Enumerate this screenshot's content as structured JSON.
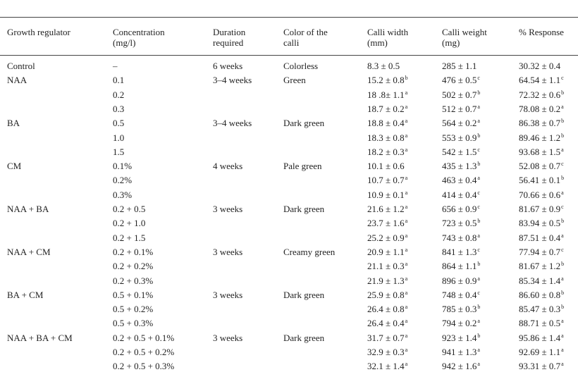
{
  "headers": [
    {
      "line1": "Growth regulator",
      "line2": ""
    },
    {
      "line1": "Concentration",
      "line2": "(mg/l)"
    },
    {
      "line1": "Duration",
      "line2": "required"
    },
    {
      "line1": "Color of the",
      "line2": "calli"
    },
    {
      "line1": "Calli width",
      "line2": "(mm)"
    },
    {
      "line1": "Calli weight",
      "line2": "(mg)"
    },
    {
      "line1": "% Response",
      "line2": ""
    }
  ],
  "rows": [
    {
      "regulator": "Control",
      "conc": "–",
      "duration": "6 weeks",
      "color": "Colorless",
      "width": {
        "v": "8.3 ± 0.5",
        "s": ""
      },
      "weight": {
        "v": "285 ± 1.1",
        "s": ""
      },
      "response": {
        "v": "30.32 ± 0.4",
        "s": ""
      }
    },
    {
      "regulator": "NAA",
      "conc": "0.1",
      "duration": "3–4 weeks",
      "color": "Green",
      "width": {
        "v": "15.2 ± 0.8",
        "s": "b"
      },
      "weight": {
        "v": "476 ± 0.5",
        "s": "c"
      },
      "response": {
        "v": "64.54 ± 1.1",
        "s": "c"
      }
    },
    {
      "regulator": "",
      "conc": "0.2",
      "duration": "",
      "color": "",
      "width": {
        "v": "18 .8± 1.1",
        "s": "a"
      },
      "weight": {
        "v": "502 ± 0.7",
        "s": "b"
      },
      "response": {
        "v": "72.32 ± 0.6",
        "s": "b"
      }
    },
    {
      "regulator": "",
      "conc": "0.3",
      "duration": "",
      "color": "",
      "width": {
        "v": "18.7 ± 0.2",
        "s": "a"
      },
      "weight": {
        "v": "512 ± 0.7",
        "s": "a"
      },
      "response": {
        "v": "78.08 ± 0.2",
        "s": "a"
      }
    },
    {
      "regulator": "BA",
      "conc": "0.5",
      "duration": "3–4 weeks",
      "color": "Dark green",
      "width": {
        "v": "18.8 ± 0.4",
        "s": "a"
      },
      "weight": {
        "v": "564 ± 0.2",
        "s": "a"
      },
      "response": {
        "v": "86.38 ± 0.7",
        "s": "b"
      }
    },
    {
      "regulator": "",
      "conc": "1.0",
      "duration": "",
      "color": "",
      "width": {
        "v": "18.3 ± 0.8",
        "s": "a"
      },
      "weight": {
        "v": "553 ± 0.9",
        "s": "b"
      },
      "response": {
        "v": "89.46 ± 1.2",
        "s": "b"
      }
    },
    {
      "regulator": "",
      "conc": "1.5",
      "duration": "",
      "color": "",
      "width": {
        "v": "18.2 ± 0.3",
        "s": "a"
      },
      "weight": {
        "v": "542 ± 1.5",
        "s": "c"
      },
      "response": {
        "v": "93.68 ± 1.5",
        "s": "a"
      }
    },
    {
      "regulator": "CM",
      "conc": "0.1%",
      "duration": "4 weeks",
      "color": "Pale green",
      "width": {
        "v": "10.1 ± 0.6",
        "s": ""
      },
      "weight": {
        "v": "435 ± 1.3",
        "s": "b"
      },
      "response": {
        "v": "52.08 ± 0.7",
        "s": "c"
      }
    },
    {
      "regulator": "",
      "conc": "0.2%",
      "duration": "",
      "color": "",
      "width": {
        "v": "10.7 ± 0.7",
        "s": "a"
      },
      "weight": {
        "v": "463 ± 0.4",
        "s": "a"
      },
      "response": {
        "v": "56.41 ± 0.1",
        "s": "b"
      }
    },
    {
      "regulator": "",
      "conc": "0.3%",
      "duration": "",
      "color": "",
      "width": {
        "v": "10.9 ± 0.1",
        "s": "a"
      },
      "weight": {
        "v": "414 ± 0.4",
        "s": "c"
      },
      "response": {
        "v": "70.66 ± 0.6",
        "s": "a"
      }
    },
    {
      "regulator": "NAA + BA",
      "conc": "0.2 + 0.5",
      "duration": "3 weeks",
      "color": "Dark green",
      "width": {
        "v": "21.6 ± 1.2",
        "s": "a"
      },
      "weight": {
        "v": "656 ± 0.9",
        "s": "c"
      },
      "response": {
        "v": "81.67 ± 0.9",
        "s": "c"
      }
    },
    {
      "regulator": "",
      "conc": "0.2 + 1.0",
      "duration": "",
      "color": "",
      "width": {
        "v": "23.7 ± 1.6",
        "s": "a"
      },
      "weight": {
        "v": "723 ± 0.5",
        "s": "b"
      },
      "response": {
        "v": "83.94 ± 0.5",
        "s": "b"
      }
    },
    {
      "regulator": "",
      "conc": "0.2 + 1.5",
      "duration": "",
      "color": "",
      "width": {
        "v": "25.2 ± 0.9",
        "s": "a"
      },
      "weight": {
        "v": "743 ± 0.8",
        "s": "a"
      },
      "response": {
        "v": "87.51 ± 0.4",
        "s": "a"
      }
    },
    {
      "regulator": "NAA + CM",
      "conc": "0.2 + 0.1%",
      "duration": "3 weeks",
      "color": "Creamy green",
      "width": {
        "v": "20.9 ± 1.1",
        "s": "a"
      },
      "weight": {
        "v": "841 ± 1.3",
        "s": "c"
      },
      "response": {
        "v": "77.94 ± 0.7",
        "s": "c"
      }
    },
    {
      "regulator": "",
      "conc": "0.2 + 0.2%",
      "duration": "",
      "color": "",
      "width": {
        "v": "21.1 ± 0.3",
        "s": "a"
      },
      "weight": {
        "v": "864 ± 1.1",
        "s": "b"
      },
      "response": {
        "v": "81.67 ± 1.2",
        "s": "b"
      }
    },
    {
      "regulator": "",
      "conc": "0.2 + 0.3%",
      "duration": "",
      "color": "",
      "width": {
        "v": "21.9 ± 1.3",
        "s": "a"
      },
      "weight": {
        "v": "896 ± 0.9",
        "s": "a"
      },
      "response": {
        "v": "85.34 ± 1.4",
        "s": "a"
      }
    },
    {
      "regulator": "BA + CM",
      "conc": "0.5 + 0.1%",
      "duration": "3 weeks",
      "color": "Dark green",
      "width": {
        "v": "25.9 ± 0.8",
        "s": "a"
      },
      "weight": {
        "v": "748 ± 0.4",
        "s": "c"
      },
      "response": {
        "v": "86.60 ± 0.8",
        "s": "b"
      }
    },
    {
      "regulator": "",
      "conc": "0.5 + 0.2%",
      "duration": "",
      "color": "",
      "width": {
        "v": "26.4 ± 0.8",
        "s": "a"
      },
      "weight": {
        "v": "785 ± 0.3",
        "s": "b"
      },
      "response": {
        "v": "85.47 ± 0.3",
        "s": "b"
      }
    },
    {
      "regulator": "",
      "conc": "0.5 + 0.3%",
      "duration": "",
      "color": "",
      "width": {
        "v": "26.4 ± 0.4",
        "s": "a"
      },
      "weight": {
        "v": "794 ± 0.2",
        "s": "a"
      },
      "response": {
        "v": "88.71 ± 0.5",
        "s": "a"
      }
    },
    {
      "regulator": "NAA + BA + CM",
      "conc": "0.2 + 0.5 + 0.1%",
      "duration": "3 weeks",
      "color": "Dark green",
      "width": {
        "v": "31.7 ± 0.7",
        "s": "a"
      },
      "weight": {
        "v": "923 ± 1.4",
        "s": "b"
      },
      "response": {
        "v": "95.86 ± 1.4",
        "s": "a"
      }
    },
    {
      "regulator": "",
      "conc": "0.2 + 0.5 + 0.2%",
      "duration": "",
      "color": "",
      "width": {
        "v": "32.9 ± 0.3",
        "s": "a"
      },
      "weight": {
        "v": "941 ± 1.3",
        "s": "a"
      },
      "response": {
        "v": "92.69 ± 1.1",
        "s": "a"
      }
    },
    {
      "regulator": "",
      "conc": "0.2 + 0.5 + 0.3%",
      "duration": "",
      "color": "",
      "width": {
        "v": "32.1 ± 1.4",
        "s": "a"
      },
      "weight": {
        "v": "942 ± 1.6",
        "s": "a"
      },
      "response": {
        "v": "93.31 ± 0.7",
        "s": "a"
      }
    }
  ]
}
